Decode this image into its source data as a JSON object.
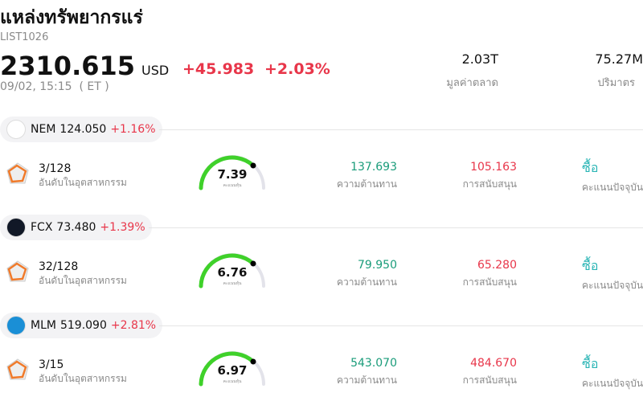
{
  "header": {
    "title": "แหล่งทรัพยากรแร่",
    "code": "LIST1026",
    "price": "2310.615",
    "currency": "USD",
    "change": "+45.983",
    "change_pct": "+2.03%",
    "time": "09/02, 15:15  ( ET )"
  },
  "stats": [
    {
      "value": "2.03T",
      "label": "มูลค่าตลาด"
    },
    {
      "value": "75.27M",
      "label": "ปริมาตร"
    }
  ],
  "stocks": [
    {
      "ticker": "NEM",
      "price": "124.050",
      "change": "+1.16%",
      "rank": "3/128",
      "rank_label": "อันดับในอุตสาหกรรม",
      "score": "7.39",
      "score_label": "คะแนนหุ้น",
      "resistance": "137.693",
      "resistance_label": "ความต้านทาน",
      "support": "105.163",
      "support_label": "การสนับสนุน",
      "action": "ซื้อ",
      "action_label": "คะแนนปัจจุบัน"
    },
    {
      "ticker": "FCX",
      "price": "73.480",
      "change": "+1.39%",
      "rank": "32/128",
      "rank_label": "อันดับในอุตสาหกรรม",
      "score": "6.76",
      "score_label": "คะแนนหุ้น",
      "resistance": "79.950",
      "resistance_label": "ความต้านทาน",
      "support": "65.280",
      "support_label": "การสนับสนุน",
      "action": "ซื้อ",
      "action_label": "คะแนนปัจจุบัน"
    },
    {
      "ticker": "MLM",
      "price": "519.090",
      "change": "+2.81%",
      "rank": "3/15",
      "rank_label": "อันดับในอุตสาหกรรม",
      "score": "6.97",
      "score_label": "คะแนนหุ้น",
      "resistance": "543.070",
      "resistance_label": "ความต้านทาน",
      "support": "484.670",
      "support_label": "การสนับสนุน",
      "action": "ซื้อ",
      "action_label": "คะแนนปัจจุบัน"
    }
  ]
}
